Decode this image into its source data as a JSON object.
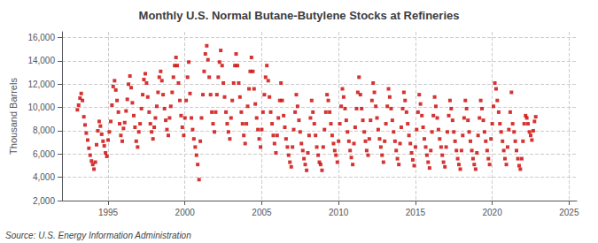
{
  "chart_data": {
    "type": "scatter",
    "title": "Monthly U.S. Normal Butane-Butylene Stocks at Refineries",
    "ylabel": "Thousand Barrels",
    "annotations": [
      "Source: U.S. Energy Information Administration"
    ],
    "color": "#cc0000",
    "marker": "square",
    "grid": true,
    "xlim": [
      1992.0,
      2025.5
    ],
    "xticks": [
      1995,
      2000,
      2005,
      2010,
      2015,
      2020,
      2025
    ],
    "ylim": [
      2000,
      16500
    ],
    "yticks": [
      {
        "value": 2000,
        "label": "2,000"
      },
      {
        "value": 4000,
        "label": "4,000"
      },
      {
        "value": 6000,
        "label": "6,000"
      },
      {
        "value": 8000,
        "label": "8,000"
      },
      {
        "value": 10000,
        "label": "10,000"
      },
      {
        "value": 12000,
        "label": "12,000"
      },
      {
        "value": 14000,
        "label": "14,000"
      },
      {
        "value": 16000,
        "label": "16,000"
      }
    ],
    "x": [
      1993.0,
      1993.08,
      1993.17,
      1993.25,
      1993.33,
      1993.42,
      1993.5,
      1993.58,
      1993.67,
      1993.75,
      1993.83,
      1993.92,
      1994.0,
      1994.08,
      1994.17,
      1994.25,
      1994.33,
      1994.42,
      1994.5,
      1994.58,
      1994.67,
      1994.75,
      1994.83,
      1994.92,
      1995.0,
      1995.08,
      1995.17,
      1995.25,
      1995.33,
      1995.42,
      1995.5,
      1995.58,
      1995.67,
      1995.75,
      1995.83,
      1995.92,
      1996.0,
      1996.08,
      1996.17,
      1996.25,
      1996.33,
      1996.42,
      1996.5,
      1996.58,
      1996.67,
      1996.75,
      1996.83,
      1996.92,
      1997.0,
      1997.08,
      1997.17,
      1997.25,
      1997.33,
      1997.42,
      1997.5,
      1997.58,
      1997.67,
      1997.75,
      1997.83,
      1997.92,
      1998.0,
      1998.08,
      1998.17,
      1998.25,
      1998.33,
      1998.42,
      1998.5,
      1998.58,
      1998.67,
      1998.75,
      1998.83,
      1998.92,
      1999.0,
      1999.08,
      1999.17,
      1999.25,
      1999.33,
      1999.42,
      1999.5,
      1999.58,
      1999.67,
      1999.75,
      1999.83,
      1999.92,
      2000.0,
      2000.08,
      2000.17,
      2000.25,
      2000.33,
      2000.42,
      2000.5,
      2000.58,
      2000.67,
      2000.75,
      2000.83,
      2000.92,
      2001.0,
      2001.08,
      2001.17,
      2001.25,
      2001.33,
      2001.42,
      2001.5,
      2001.58,
      2001.67,
      2001.75,
      2001.83,
      2001.92,
      2002.0,
      2002.08,
      2002.17,
      2002.25,
      2002.33,
      2002.42,
      2002.5,
      2002.58,
      2002.67,
      2002.75,
      2002.83,
      2002.92,
      2003.0,
      2003.08,
      2003.17,
      2003.25,
      2003.33,
      2003.42,
      2003.5,
      2003.58,
      2003.67,
      2003.75,
      2003.83,
      2003.92,
      2004.0,
      2004.08,
      2004.17,
      2004.25,
      2004.33,
      2004.42,
      2004.5,
      2004.58,
      2004.67,
      2004.75,
      2004.83,
      2004.92,
      2005.0,
      2005.08,
      2005.17,
      2005.25,
      2005.33,
      2005.42,
      2005.5,
      2005.58,
      2005.67,
      2005.75,
      2005.83,
      2005.92,
      2006.0,
      2006.08,
      2006.17,
      2006.25,
      2006.33,
      2006.42,
      2006.5,
      2006.58,
      2006.67,
      2006.75,
      2006.83,
      2006.92,
      2007.0,
      2007.08,
      2007.17,
      2007.25,
      2007.33,
      2007.42,
      2007.5,
      2007.58,
      2007.67,
      2007.75,
      2007.83,
      2007.92,
      2008.0,
      2008.08,
      2008.17,
      2008.25,
      2008.33,
      2008.42,
      2008.5,
      2008.58,
      2008.67,
      2008.75,
      2008.83,
      2008.92,
      2009.0,
      2009.08,
      2009.17,
      2009.25,
      2009.33,
      2009.42,
      2009.5,
      2009.58,
      2009.67,
      2009.75,
      2009.83,
      2009.92,
      2010.0,
      2010.08,
      2010.17,
      2010.25,
      2010.33,
      2010.42,
      2010.5,
      2010.58,
      2010.67,
      2010.75,
      2010.83,
      2010.92,
      2011.0,
      2011.08,
      2011.17,
      2011.25,
      2011.33,
      2011.42,
      2011.5,
      2011.58,
      2011.67,
      2011.75,
      2011.83,
      2011.92,
      2012.0,
      2012.08,
      2012.17,
      2012.25,
      2012.33,
      2012.42,
      2012.5,
      2012.58,
      2012.67,
      2012.75,
      2012.83,
      2012.92,
      2013.0,
      2013.08,
      2013.17,
      2013.25,
      2013.33,
      2013.42,
      2013.5,
      2013.58,
      2013.67,
      2013.75,
      2013.83,
      2013.92,
      2014.0,
      2014.08,
      2014.17,
      2014.25,
      2014.33,
      2014.42,
      2014.5,
      2014.58,
      2014.67,
      2014.75,
      2014.83,
      2014.92,
      2015.0,
      2015.08,
      2015.17,
      2015.25,
      2015.33,
      2015.42,
      2015.5,
      2015.58,
      2015.67,
      2015.75,
      2015.83,
      2015.92,
      2016.0,
      2016.08,
      2016.17,
      2016.25,
      2016.33,
      2016.42,
      2016.5,
      2016.58,
      2016.67,
      2016.75,
      2016.83,
      2016.92,
      2017.0,
      2017.08,
      2017.17,
      2017.25,
      2017.33,
      2017.42,
      2017.5,
      2017.58,
      2017.67,
      2017.75,
      2017.83,
      2017.92,
      2018.0,
      2018.08,
      2018.17,
      2018.25,
      2018.33,
      2018.42,
      2018.5,
      2018.58,
      2018.67,
      2018.75,
      2018.83,
      2018.92,
      2019.0,
      2019.08,
      2019.17,
      2019.25,
      2019.33,
      2019.42,
      2019.5,
      2019.58,
      2019.67,
      2019.75,
      2019.83,
      2019.92,
      2020.0,
      2020.08,
      2020.17,
      2020.25,
      2020.33,
      2020.42,
      2020.5,
      2020.58,
      2020.67,
      2020.75,
      2020.83,
      2020.92,
      2021.0,
      2021.08,
      2021.17,
      2021.25,
      2021.33,
      2021.42,
      2021.5,
      2021.58,
      2021.67,
      2021.75,
      2021.83,
      2021.92,
      2022.0,
      2022.08,
      2022.17,
      2022.25,
      2022.33,
      2022.42,
      2022.5,
      2022.58,
      2022.67,
      2022.75,
      2022.83
    ],
    "values": [
      9800,
      10200,
      10800,
      11200,
      10600,
      9200,
      8500,
      7800,
      7200,
      6500,
      5900,
      5400,
      5100,
      4700,
      5300,
      6800,
      8000,
      8800,
      8400,
      7700,
      7100,
      6700,
      6100,
      5800,
      7200,
      7900,
      8800,
      10200,
      11800,
      12300,
      11500,
      10600,
      9600,
      8600,
      7600,
      7100,
      8200,
      8700,
      9700,
      10700,
      12000,
      12700,
      11700,
      10400,
      9300,
      8300,
      7100,
      6600,
      7900,
      8600,
      9900,
      11100,
      12400,
      12900,
      12100,
      10900,
      9600,
      8600,
      7900,
      7300,
      8300,
      9100,
      10100,
      11300,
      12600,
      13100,
      12300,
      11100,
      9900,
      8900,
      8100,
      7600,
      9100,
      10100,
      11300,
      12600,
      13600,
      14300,
      13600,
      12100,
      10600,
      9300,
      8300,
      7600,
      9100,
      10600,
      12600,
      13900,
      11200,
      9100,
      8100,
      7300,
      6600,
      5900,
      5100,
      3800,
      7100,
      9100,
      11100,
      13100,
      14600,
      15300,
      14100,
      12600,
      11100,
      9600,
      8600,
      7900,
      9600,
      11100,
      12600,
      13900,
      14900,
      13600,
      12100,
      10900,
      9600,
      8600,
      7900,
      7300,
      9100,
      10600,
      12100,
      13600,
      14600,
      13600,
      12100,
      10900,
      9600,
      8600,
      7600,
      6900,
      8600,
      10100,
      11600,
      13100,
      14300,
      13100,
      11600,
      10300,
      9100,
      8100,
      7300,
      6600,
      8100,
      9600,
      11100,
      12600,
      13600,
      12300,
      10900,
      9600,
      8600,
      7600,
      6900,
      6100,
      7600,
      9100,
      10600,
      12100,
      10600,
      9300,
      8300,
      7300,
      6600,
      5900,
      5300,
      4900,
      6600,
      8100,
      9600,
      11100,
      10100,
      8900,
      7900,
      6900,
      6300,
      5600,
      5100,
      4600,
      6100,
      7600,
      9100,
      10600,
      9600,
      8600,
      7600,
      6600,
      5900,
      5300,
      5100,
      4600,
      6600,
      8100,
      9600,
      11100,
      10600,
      9600,
      8600,
      7600,
      6900,
      6300,
      5900,
      5300,
      7100,
      8600,
      10100,
      11600,
      10900,
      9900,
      8900,
      7900,
      7100,
      6300,
      5700,
      5100,
      6900,
      8300,
      9900,
      11300,
      12600,
      11100,
      9900,
      8900,
      7900,
      7100,
      6300,
      5900,
      7300,
      8900,
      10600,
      12100,
      11300,
      10100,
      9100,
      8100,
      7300,
      6600,
      5900,
      5300,
      7100,
      8600,
      10100,
      11600,
      10900,
      9900,
      8900,
      7900,
      7100,
      6300,
      5600,
      5100,
      6900,
      8300,
      9900,
      11300,
      10600,
      9600,
      8600,
      7600,
      6900,
      6100,
      5500,
      5000,
      6600,
      8100,
      9600,
      11100,
      10300,
      9300,
      8300,
      7300,
      6600,
      5900,
      5300,
      4800,
      6300,
      7900,
      9300,
      10900,
      10100,
      9100,
      8100,
      7300,
      6600,
      5900,
      5300,
      4900,
      6600,
      7900,
      9300,
      10600,
      9900,
      8900,
      7900,
      7100,
      6300,
      5600,
      5100,
      4700,
      6300,
      7600,
      9100,
      10600,
      9900,
      8900,
      7900,
      7100,
      6300,
      5600,
      5100,
      4700,
      6100,
      7600,
      9100,
      10600,
      9900,
      8900,
      7900,
      7100,
      6300,
      5600,
      5100,
      7300,
      8600,
      10100,
      12100,
      11600,
      10600,
      9600,
      8600,
      7900,
      7100,
      6300,
      5600,
      5100,
      6600,
      8100,
      9600,
      11300,
      8600,
      7900,
      7100,
      6300,
      5600,
      5000,
      4700,
      5600,
      7100,
      8600,
      9300,
      9100,
      8600,
      7900,
      7600,
      7200,
      8000,
      8800,
      9200
    ]
  }
}
